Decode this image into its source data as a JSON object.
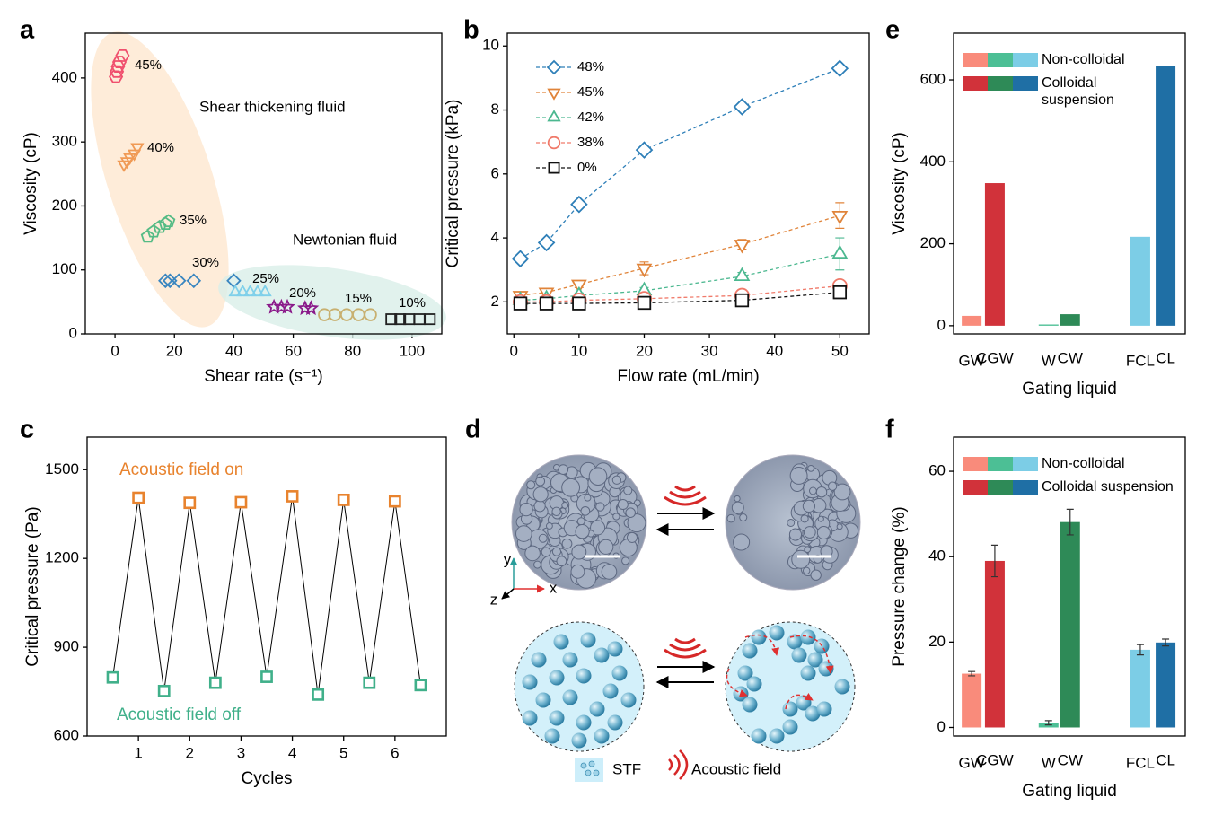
{
  "chart_data": [
    {
      "type": "scatter",
      "panel": "a",
      "xlabel": "Shear rate (s⁻¹)",
      "ylabel": "Viscosity (cP)",
      "xlim": [
        -10,
        110
      ],
      "xticks": [
        0,
        20,
        40,
        60,
        80,
        100
      ],
      "ylim": [
        0,
        470
      ],
      "yticks": [
        0,
        100,
        200,
        300,
        400
      ],
      "annotations": [
        "Shear thickening fluid",
        "Newtonian fluid"
      ],
      "series": [
        {
          "name": "45%",
          "color": "#f0506e",
          "marker": "hexagon",
          "x": [
            0.3,
            0.6,
            1.0,
            1.5,
            2.5
          ],
          "values": [
            402,
            410,
            418,
            425,
            435
          ]
        },
        {
          "name": "40%",
          "color": "#f09a55",
          "marker": "triangle-down",
          "x": [
            3,
            4,
            5,
            6.5,
            7.5
          ],
          "values": [
            265,
            270,
            276,
            282,
            292
          ]
        },
        {
          "name": "35%",
          "color": "#55bb85",
          "marker": "pentagon",
          "x": [
            11,
            13,
            15,
            17,
            18
          ],
          "values": [
            152,
            160,
            167,
            172,
            176
          ]
        },
        {
          "name": "30%",
          "color": "#3a86c0",
          "marker": "diamond",
          "x": [
            17,
            18.5,
            21.5,
            26.5,
            40
          ],
          "values": [
            83,
            83,
            83,
            83,
            83
          ]
        },
        {
          "name": "25%",
          "color": "#7fd0ea",
          "marker": "triangle-up",
          "x": [
            40.5,
            43,
            45.5,
            48,
            50.5
          ],
          "values": [
            65,
            65,
            65,
            65,
            65
          ]
        },
        {
          "name": "20%",
          "color": "#8a1a8a",
          "marker": "star",
          "x": [
            53.5,
            56,
            58,
            64,
            66
          ],
          "values": [
            42,
            42,
            42,
            40,
            40
          ]
        },
        {
          "name": "15%",
          "color": "#c8b070",
          "marker": "circle",
          "x": [
            70.5,
            74,
            78,
            82,
            86
          ],
          "values": [
            30,
            30,
            30,
            30,
            30
          ]
        },
        {
          "name": "10%",
          "color": "#222222",
          "marker": "square",
          "x": [
            93,
            96,
            99,
            102.5,
            106
          ],
          "values": [
            23,
            23,
            23,
            23,
            23
          ]
        }
      ]
    },
    {
      "type": "line",
      "panel": "b",
      "xlabel": "Flow rate (mL/min)",
      "ylabel": "Critical pressure (kPa)",
      "xlim": [
        -1,
        54.5
      ],
      "xticks": [
        0,
        10,
        20,
        30,
        40,
        50
      ],
      "ylim": [
        1,
        10.4
      ],
      "yticks": [
        2,
        4,
        6,
        8,
        10
      ],
      "legend": "upper left",
      "x": [
        1,
        5,
        10,
        20,
        35,
        50
      ],
      "series": [
        {
          "name": "48%",
          "color": "#2e7fb8",
          "marker": "diamond",
          "linestyle": "dashed",
          "values": [
            3.35,
            3.85,
            5.05,
            6.75,
            8.1,
            9.3
          ]
        },
        {
          "name": "45%",
          "color": "#e0843a",
          "marker": "triangle-down",
          "linestyle": "dashed",
          "values": [
            2.2,
            2.3,
            2.55,
            3.05,
            3.8,
            4.7
          ],
          "errors": [
            0.1,
            0.1,
            0.1,
            0.2,
            0.15,
            0.4
          ]
        },
        {
          "name": "42%",
          "color": "#4cb890",
          "marker": "triangle-up",
          "linestyle": "dashed",
          "values": [
            2.05,
            2.1,
            2.2,
            2.35,
            2.8,
            3.5
          ],
          "errors": [
            0.05,
            0.05,
            0.08,
            0.1,
            0.12,
            0.5
          ]
        },
        {
          "name": "38%",
          "color": "#f07a6a",
          "marker": "circle",
          "linestyle": "dashed",
          "values": [
            2.0,
            2.0,
            2.05,
            2.1,
            2.2,
            2.5
          ]
        },
        {
          "name": "0%",
          "color": "#111111",
          "marker": "square",
          "linestyle": "dashed",
          "values": [
            1.95,
            1.95,
            1.95,
            1.97,
            2.05,
            2.3
          ]
        }
      ]
    },
    {
      "type": "line",
      "panel": "c",
      "xlabel": "Cycles",
      "ylabel": "Critical pressure (Pa)",
      "xlim": [
        0,
        7
      ],
      "xticks": [
        1,
        2,
        3,
        4,
        5,
        6
      ],
      "ylim": [
        600,
        1610
      ],
      "yticks": [
        600,
        900,
        1200,
        1500
      ],
      "line_color": "#000000",
      "series": [
        {
          "name": "Acoustic field off",
          "color": "#40b08a",
          "marker": "square",
          "x": [
            0.5,
            1.5,
            2.5,
            3.5,
            4.5,
            5.5,
            6.5
          ],
          "values": [
            798,
            752,
            780,
            800,
            740,
            780,
            772
          ]
        },
        {
          "name": "Acoustic field on",
          "color": "#e8832e",
          "marker": "square",
          "x": [
            1,
            2,
            3,
            4,
            5,
            6
          ],
          "values": [
            1405,
            1388,
            1390,
            1410,
            1398,
            1393
          ]
        }
      ]
    },
    {
      "type": "bar",
      "panel": "e",
      "xlabel": "Gating liquid",
      "ylabel": "Viscosity (cP)",
      "ylim": [
        -20,
        714
      ],
      "yticks": [
        0,
        200,
        400,
        600
      ],
      "categories": [
        "GW",
        "CGW",
        "W",
        "CW",
        "FCL",
        "CL"
      ],
      "values": [
        24,
        348,
        3,
        28,
        217,
        633
      ],
      "colors": [
        "#f98b7b",
        "#d1323a",
        "#4cbf95",
        "#2e8a57",
        "#7ccde6",
        "#1f6fa5"
      ],
      "legend": [
        {
          "name": "Non-colloidal",
          "colors": [
            "#f98b7b",
            "#4cbf95",
            "#7ccde6"
          ]
        },
        {
          "name": "Colloidal suspension",
          "colors": [
            "#d1323a",
            "#2e8a57",
            "#1f6fa5"
          ]
        }
      ]
    },
    {
      "type": "bar",
      "panel": "f",
      "xlabel": "Gating liquid",
      "ylabel": "Pressure change (%)",
      "ylim": [
        -2,
        68
      ],
      "yticks": [
        0,
        20,
        40,
        60
      ],
      "categories": [
        "GW",
        "CGW",
        "W",
        "CW",
        "FCL",
        "CL"
      ],
      "values": [
        12.6,
        39,
        1.1,
        48.1,
        18.2,
        19.9
      ],
      "errors": [
        0.5,
        3.7,
        0.5,
        3,
        1.2,
        0.8
      ],
      "colors": [
        "#f98b7b",
        "#d1323a",
        "#4cbf95",
        "#2e8a57",
        "#7ccde6",
        "#1f6fa5"
      ],
      "legend": [
        {
          "name": "Non-colloidal",
          "colors": [
            "#f98b7b",
            "#4cbf95",
            "#7ccde6"
          ]
        },
        {
          "name": "Colloidal suspension",
          "colors": [
            "#d1323a",
            "#2e8a57",
            "#1f6fa5"
          ]
        }
      ]
    }
  ],
  "diagram": {
    "panel": "d",
    "axes": {
      "x": "x",
      "y": "y",
      "z": "z"
    },
    "legend": [
      "STF",
      "Acoustic field"
    ]
  }
}
